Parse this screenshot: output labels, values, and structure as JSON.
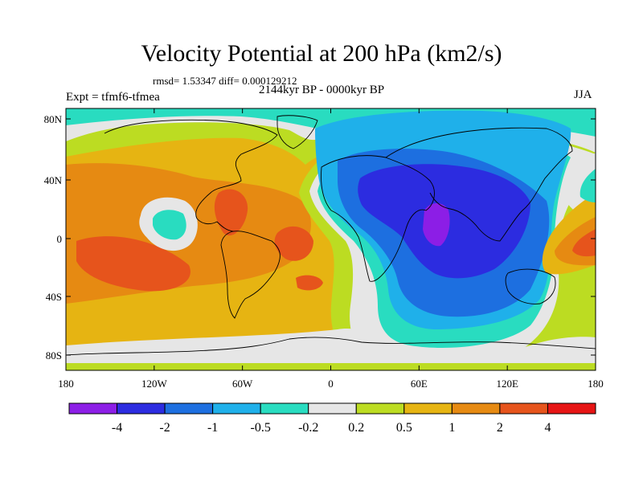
{
  "figure": {
    "title": "Velocity Potential at 200 hPa (km2/s)",
    "stats": "rmsd= 1.53347 diff= 0.000129212",
    "period": "2144kyr BP - 0000kyr BP",
    "experiment": "Expt = tfmf6-tfmea",
    "season": "JJA"
  },
  "axes": {
    "lat_ticks": [
      "80N",
      "40N",
      "0",
      "40S",
      "80S"
    ],
    "lon_ticks": [
      "180",
      "120W",
      "60W",
      "0",
      "60E",
      "120E",
      "180"
    ]
  },
  "colorbar": {
    "colors": [
      "#8c1ee6",
      "#2c2ce0",
      "#1d6fe0",
      "#1fb0ea",
      "#29dcc0",
      "#e6e6e6",
      "#bcdc22",
      "#e6b412",
      "#e68a12",
      "#e6541c",
      "#e61414"
    ],
    "labels": [
      "-4",
      "-2",
      "-1",
      "-0.5",
      "-0.2",
      "0.2",
      "0.5",
      "1",
      "2",
      "4"
    ]
  }
}
